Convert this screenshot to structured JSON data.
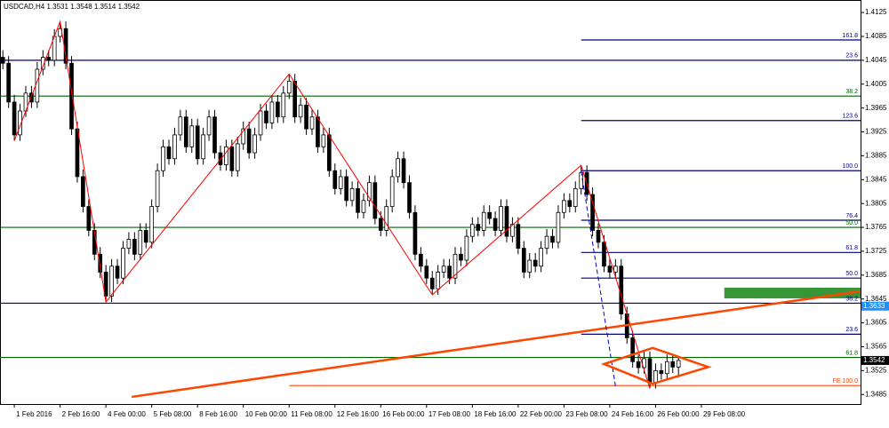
{
  "chart_data": {
    "type": "candlestick",
    "title": "USDCAD,H4",
    "ohlc": [
      1.3531,
      1.3548,
      1.3514,
      1.3542
    ],
    "up_color": "#ffffff",
    "down_color": "#000000",
    "open": [
      1.405,
      1.404,
      1.3975,
      1.392,
      1.396,
      1.399,
      1.3975,
      1.403,
      1.405,
      1.4045,
      1.4085,
      1.4098,
      1.404,
      1.393,
      1.385,
      1.38,
      1.376,
      1.372,
      1.369,
      1.365,
      1.37,
      1.368,
      1.373,
      1.3745,
      1.372,
      1.376,
      1.374,
      1.38,
      1.386,
      1.39,
      1.388,
      1.392,
      1.395,
      1.39,
      1.3935,
      1.388,
      1.392,
      1.395,
      1.389,
      1.387,
      1.39,
      1.386,
      1.3905,
      1.393,
      1.389,
      1.392,
      1.396,
      1.394,
      1.3975,
      1.395,
      1.399,
      1.401,
      1.395,
      1.397,
      1.393,
      1.395,
      1.39,
      1.392,
      1.386,
      1.383,
      1.385,
      1.381,
      1.383,
      1.379,
      1.381,
      1.384,
      1.378,
      1.376,
      1.38,
      1.385,
      1.388,
      1.384,
      1.379,
      1.372,
      1.37,
      1.368,
      1.3662,
      1.369,
      1.37,
      1.368,
      1.372,
      1.371,
      1.375,
      1.377,
      1.376,
      1.379,
      1.378,
      1.376,
      1.38,
      1.375,
      1.377,
      1.373,
      1.369,
      1.371,
      1.37,
      1.373,
      1.375,
      1.374,
      1.379,
      1.381,
      1.38,
      1.383,
      1.3857,
      1.382,
      1.376,
      1.374,
      1.37,
      1.369,
      1.37,
      1.362,
      1.358,
      1.354,
      1.353,
      1.3545,
      1.3505,
      1.3525,
      1.352,
      1.354,
      1.3531
    ],
    "high": [
      1.4062,
      1.4052,
      1.3987,
      1.3972,
      1.4002,
      1.4002,
      1.4042,
      1.4062,
      1.4062,
      1.4097,
      1.411,
      1.411,
      1.4052,
      1.3942,
      1.3862,
      1.3812,
      1.3772,
      1.3732,
      1.3702,
      1.3712,
      1.3712,
      1.3742,
      1.3757,
      1.3757,
      1.3772,
      1.3772,
      1.3812,
      1.3872,
      1.3912,
      1.3912,
      1.3932,
      1.3962,
      1.3962,
      1.3947,
      1.3947,
      1.3932,
      1.3962,
      1.3962,
      1.3902,
      1.3912,
      1.3912,
      1.3917,
      1.3942,
      1.3942,
      1.3932,
      1.3972,
      1.3972,
      1.3987,
      1.3987,
      1.4002,
      1.4022,
      1.4022,
      1.3982,
      1.3982,
      1.3962,
      1.3962,
      1.3932,
      1.3932,
      1.3872,
      1.3862,
      1.3862,
      1.3842,
      1.3842,
      1.3822,
      1.3852,
      1.3852,
      1.3792,
      1.3812,
      1.3862,
      1.3892,
      1.3892,
      1.3852,
      1.3802,
      1.3732,
      1.3712,
      1.3692,
      1.3702,
      1.3712,
      1.3712,
      1.3732,
      1.3732,
      1.3762,
      1.3782,
      1.3782,
      1.3802,
      1.3802,
      1.3792,
      1.3812,
      1.3812,
      1.3782,
      1.3782,
      1.3742,
      1.3722,
      1.3722,
      1.3742,
      1.3762,
      1.3762,
      1.3802,
      1.3822,
      1.3822,
      1.3842,
      1.3869,
      1.3869,
      1.3832,
      1.3772,
      1.3752,
      1.3712,
      1.3712,
      1.3712,
      1.3632,
      1.3592,
      1.3552,
      1.3557,
      1.3557,
      1.3537,
      1.3537,
      1.3552,
      1.3552,
      1.3548
    ],
    "low": [
      1.403,
      1.3965,
      1.391,
      1.391,
      1.395,
      1.3965,
      1.3965,
      1.402,
      1.4035,
      1.4035,
      1.4075,
      1.403,
      1.392,
      1.384,
      1.379,
      1.375,
      1.371,
      1.368,
      1.364,
      1.364,
      1.367,
      1.367,
      1.372,
      1.371,
      1.371,
      1.373,
      1.373,
      1.379,
      1.385,
      1.387,
      1.387,
      1.391,
      1.389,
      1.389,
      1.387,
      1.387,
      1.391,
      1.388,
      1.386,
      1.386,
      1.385,
      1.385,
      1.3895,
      1.388,
      1.388,
      1.391,
      1.393,
      1.393,
      1.394,
      1.394,
      1.398,
      1.394,
      1.394,
      1.392,
      1.392,
      1.389,
      1.389,
      1.385,
      1.382,
      1.382,
      1.38,
      1.38,
      1.378,
      1.378,
      1.38,
      1.377,
      1.375,
      1.375,
      1.379,
      1.384,
      1.383,
      1.378,
      1.371,
      1.369,
      1.367,
      1.3652,
      1.3652,
      1.368,
      1.367,
      1.367,
      1.37,
      1.37,
      1.374,
      1.375,
      1.375,
      1.377,
      1.375,
      1.375,
      1.374,
      1.374,
      1.372,
      1.368,
      1.368,
      1.369,
      1.369,
      1.372,
      1.373,
      1.373,
      1.378,
      1.379,
      1.379,
      1.382,
      1.381,
      1.375,
      1.373,
      1.369,
      1.368,
      1.368,
      1.361,
      1.357,
      1.353,
      1.352,
      1.352,
      1.3495,
      1.3495,
      1.351,
      1.351,
      1.3521,
      1.3514
    ],
    "close": [
      1.404,
      1.3975,
      1.392,
      1.396,
      1.399,
      1.3975,
      1.403,
      1.405,
      1.4045,
      1.4085,
      1.4098,
      1.404,
      1.393,
      1.385,
      1.38,
      1.376,
      1.372,
      1.369,
      1.365,
      1.37,
      1.368,
      1.373,
      1.3745,
      1.372,
      1.376,
      1.374,
      1.38,
      1.386,
      1.39,
      1.388,
      1.392,
      1.395,
      1.39,
      1.3935,
      1.388,
      1.392,
      1.395,
      1.389,
      1.387,
      1.39,
      1.386,
      1.3905,
      1.393,
      1.389,
      1.392,
      1.396,
      1.394,
      1.3975,
      1.395,
      1.399,
      1.401,
      1.395,
      1.397,
      1.393,
      1.395,
      1.39,
      1.392,
      1.386,
      1.383,
      1.385,
      1.381,
      1.383,
      1.379,
      1.381,
      1.384,
      1.378,
      1.376,
      1.38,
      1.385,
      1.388,
      1.384,
      1.379,
      1.372,
      1.37,
      1.368,
      1.3662,
      1.369,
      1.37,
      1.368,
      1.372,
      1.371,
      1.375,
      1.377,
      1.376,
      1.379,
      1.378,
      1.376,
      1.38,
      1.375,
      1.377,
      1.373,
      1.369,
      1.371,
      1.37,
      1.373,
      1.375,
      1.374,
      1.379,
      1.381,
      1.38,
      1.383,
      1.3857,
      1.382,
      1.376,
      1.374,
      1.37,
      1.369,
      1.37,
      1.362,
      1.358,
      1.354,
      1.353,
      1.3545,
      1.3505,
      1.3525,
      1.352,
      1.354,
      1.3531,
      1.3542
    ],
    "xlim": [
      -0.5,
      149.8
    ],
    "ylim": [
      1.3469,
      1.4146
    ],
    "xticks": [
      {
        "value": 2,
        "label": "1 Feb 2016"
      },
      {
        "value": 10,
        "label": "2 Feb 16:00"
      },
      {
        "value": 18,
        "label": "4 Feb 00:00"
      },
      {
        "value": 26,
        "label": "5 Feb 08:00"
      },
      {
        "value": 34,
        "label": "8 Feb 16:00"
      },
      {
        "value": 42,
        "label": "10 Feb 00:00"
      },
      {
        "value": 50,
        "label": "11 Feb 08:00"
      },
      {
        "value": 58,
        "label": "12 Feb 16:00"
      },
      {
        "value": 66,
        "label": "16 Feb 00:00"
      },
      {
        "value": 74,
        "label": "17 Feb 08:00"
      },
      {
        "value": 82,
        "label": "18 Feb 16:00"
      },
      {
        "value": 90,
        "label": "22 Feb 00:00"
      },
      {
        "value": 98,
        "label": "23 Feb 08:00"
      },
      {
        "value": 106,
        "label": "24 Feb 16:00"
      },
      {
        "value": 114,
        "label": "26 Feb 00:00"
      },
      {
        "value": 122,
        "label": "29 Feb 08:00"
      }
    ],
    "yticks": [
      1.4125,
      1.4085,
      1.4045,
      1.4005,
      1.3965,
      1.3925,
      1.3885,
      1.3845,
      1.3805,
      1.3765,
      1.3725,
      1.3685,
      1.3645,
      1.3605,
      1.3565,
      1.3525,
      1.3485
    ],
    "levels": [
      {
        "value": 1.4079,
        "label": "161.8",
        "color": "#000080",
        "from": 101
      },
      {
        "value": 1.4045,
        "label": "23.6",
        "color": "#000080",
        "from": -0.5
      },
      {
        "value": 1.3985,
        "label": "38.2",
        "color": "#006400",
        "from": -0.5
      },
      {
        "value": 1.3944,
        "label": "123.6",
        "color": "#000080",
        "from": 101
      },
      {
        "value": 1.386,
        "label": "100.0",
        "color": "#000080",
        "from": 101
      },
      {
        "value": 1.3777,
        "label": "76.4",
        "color": "#000080",
        "from": 101
      },
      {
        "value": 1.3765,
        "label": "50.0",
        "color": "#006400",
        "from": -0.5
      },
      {
        "value": 1.3723,
        "label": "61.8",
        "color": "#000080",
        "from": 101
      },
      {
        "value": 1.368,
        "label": "50.0",
        "color": "#000080",
        "from": 101
      },
      {
        "value": 1.3638,
        "label": "38.2",
        "color": "#000080",
        "from": -0.5
      },
      {
        "value": 1.3586,
        "label": "23.6",
        "color": "#000080",
        "from": 101
      },
      {
        "value": 1.3547,
        "label": "61.8",
        "color": "#006400",
        "from": -0.5
      },
      {
        "value": 1.35,
        "label": "FE 100.0",
        "color": "#ff4500",
        "from": 50
      }
    ],
    "zigzag": {
      "color": "#ff0000",
      "x": [
        2,
        10,
        18,
        50,
        75,
        101,
        113
      ],
      "values": [
        1.391,
        1.411,
        1.364,
        1.4022,
        1.3652,
        1.3869,
        1.3495
      ]
    },
    "trendline": {
      "color": "#ff4500",
      "x": [
        22.5,
        149.8
      ],
      "values": [
        1.3481,
        1.3658
      ]
    },
    "dashed": {
      "color": "#0000cd",
      "x": [
        101,
        107
      ],
      "values": [
        1.3859,
        1.3499
      ]
    },
    "diamond": {
      "color": "#ff4500",
      "x": [
        105,
        113.5,
        123.2,
        113.5
      ],
      "values": [
        1.3536,
        1.3563,
        1.3531,
        1.3503
      ]
    },
    "zone": {
      "color": "#228b22",
      "x": [
        126,
        149.8
      ],
      "values": [
        1.3664,
        1.3646
      ]
    },
    "price_tags": [
      {
        "value": 1.3633,
        "color": "#1e90ff"
      },
      {
        "value": 1.3542,
        "color": "#000000"
      }
    ]
  }
}
